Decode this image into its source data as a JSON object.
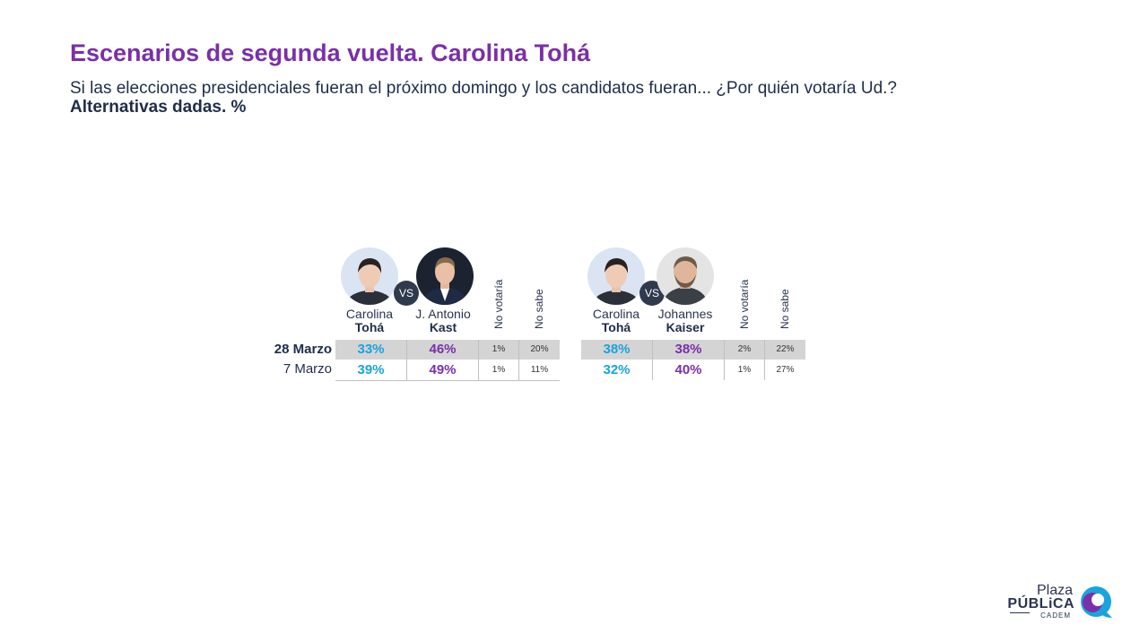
{
  "title": "Escenarios de segunda vuelta. Carolina Tohá",
  "subtitle": "Si las elecciones presidenciales fueran el próximo domingo y los candidatos fueran... ¿Por quién votaría Ud.?",
  "subtitle2": "Alternativas dadas. %",
  "vs_label": "VS",
  "logo": {
    "plaza": "Plaza",
    "publica": "PÚBLiCA",
    "cadem": "CADEM"
  },
  "colors": {
    "title": "#7b2fa8",
    "toha": "#1aa3dc",
    "opponent": "#7b2fa8",
    "band": "#d4d4d4"
  },
  "chart_data": [
    {
      "type": "table",
      "rows": [
        "28 Marzo",
        "7 Marzo"
      ],
      "columns": [
        {
          "first": "Carolina",
          "last": "Tohá"
        },
        {
          "first": "J. Antonio",
          "last": "Kast"
        },
        {
          "label": "No votaría"
        },
        {
          "label": "No sabe"
        }
      ],
      "values": [
        [
          "33%",
          "46%",
          "1%",
          "20%"
        ],
        [
          "39%",
          "49%",
          "1%",
          "11%"
        ]
      ]
    },
    {
      "type": "table",
      "rows": [
        "28 Marzo",
        "7 Marzo"
      ],
      "columns": [
        {
          "first": "Carolina",
          "last": "Tohá"
        },
        {
          "first": "Johannes",
          "last": "Kaiser"
        },
        {
          "label": "No votaría"
        },
        {
          "label": "No sabe"
        }
      ],
      "values": [
        [
          "38%",
          "38%",
          "2%",
          "22%"
        ],
        [
          "32%",
          "40%",
          "1%",
          "27%"
        ]
      ]
    }
  ]
}
